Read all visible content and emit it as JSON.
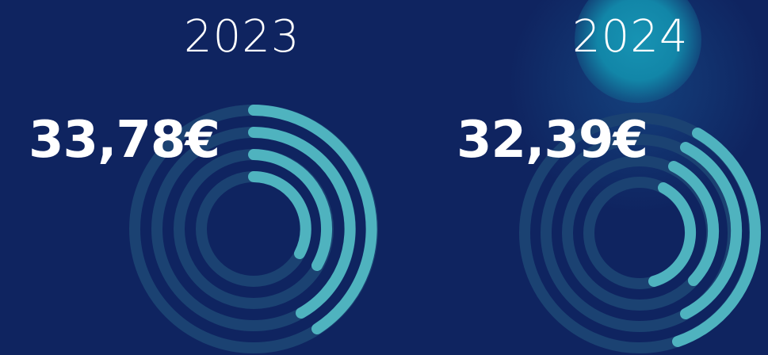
{
  "panels": [
    {
      "year": "2023",
      "price": "33,78€"
    },
    {
      "year": "2024",
      "price": "32,39€"
    }
  ],
  "colors": {
    "background": "#0f2460",
    "accent": "#4fb3bf",
    "accent_dim": "#1e4f7a",
    "highlight": "#1793b3"
  }
}
